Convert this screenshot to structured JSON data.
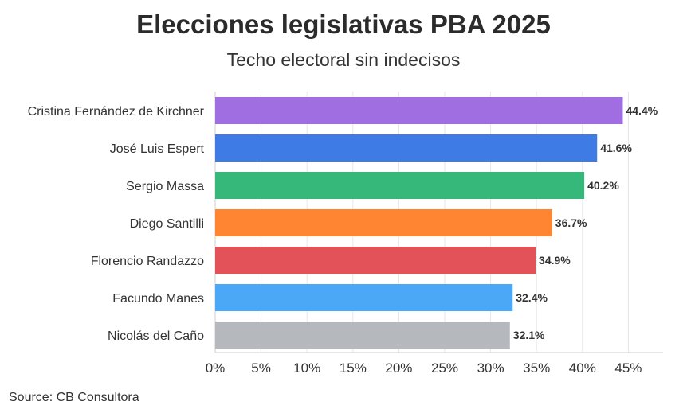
{
  "title": "Elecciones legislativas PBA 2025",
  "subtitle": "Techo electoral sin indecisos",
  "source": "Source: CB Consultora",
  "chart_data": {
    "type": "bar",
    "orientation": "horizontal",
    "title": "Elecciones legislativas PBA 2025",
    "subtitle": "Techo electoral sin indecisos",
    "categories": [
      "Cristina Fernández de Kirchner",
      "José Luis Espert",
      "Sergio Massa",
      "Diego Santilli",
      "Florencio Randazzo",
      "Facundo Manes",
      "Nicolás del Caño"
    ],
    "values": [
      44.4,
      41.6,
      40.2,
      36.7,
      34.9,
      32.4,
      32.1
    ],
    "value_labels": [
      "44.4%",
      "41.6%",
      "40.2%",
      "36.7%",
      "34.9%",
      "32.4%",
      "32.1%"
    ],
    "colors": [
      "#a06ee0",
      "#3f7be4",
      "#37b87b",
      "#ff8533",
      "#e35259",
      "#4aa8f7",
      "#b5b9bd"
    ],
    "xlim": [
      0,
      48
    ],
    "xticks": [
      0,
      5,
      10,
      15,
      20,
      25,
      30,
      35,
      40,
      45
    ],
    "xtick_labels": [
      "0%",
      "5%",
      "10%",
      "15%",
      "20%",
      "25%",
      "30%",
      "35%",
      "40%",
      "45%"
    ],
    "xlabel": "",
    "ylabel": "",
    "grid": true,
    "legend": "none"
  }
}
